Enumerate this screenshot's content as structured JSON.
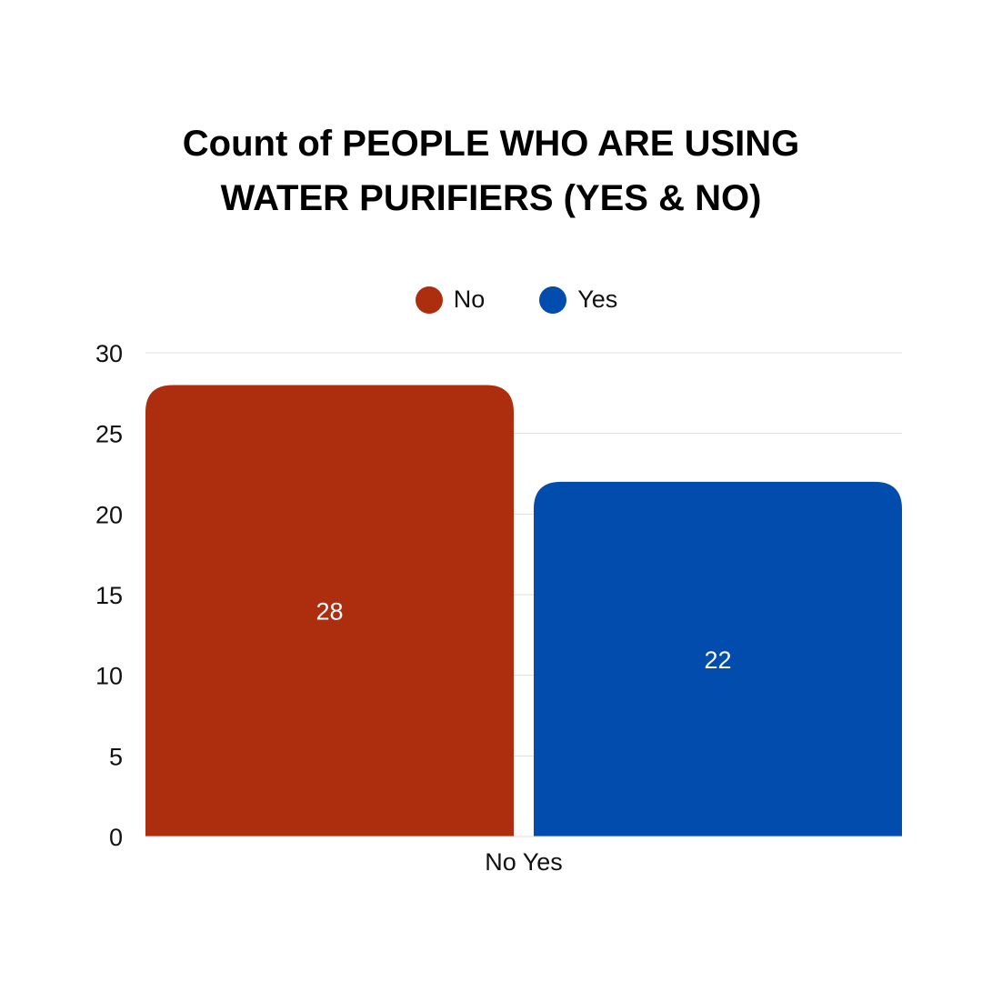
{
  "chart_data": {
    "type": "bar",
    "title_lines": [
      "Count of PEOPLE WHO ARE USING",
      "WATER PURIFIERS (YES & NO)"
    ],
    "categories": [
      "No Yes"
    ],
    "series": [
      {
        "name": "No",
        "values": [
          28
        ],
        "color": "#AD2E0F"
      },
      {
        "name": "Yes",
        "values": [
          22
        ],
        "color": "#024CAD"
      }
    ],
    "ylim": [
      0,
      30
    ],
    "yticks": [
      0,
      5,
      10,
      15,
      20,
      25,
      30
    ],
    "grid": true,
    "legend": "top-center",
    "data_labels": true
  }
}
